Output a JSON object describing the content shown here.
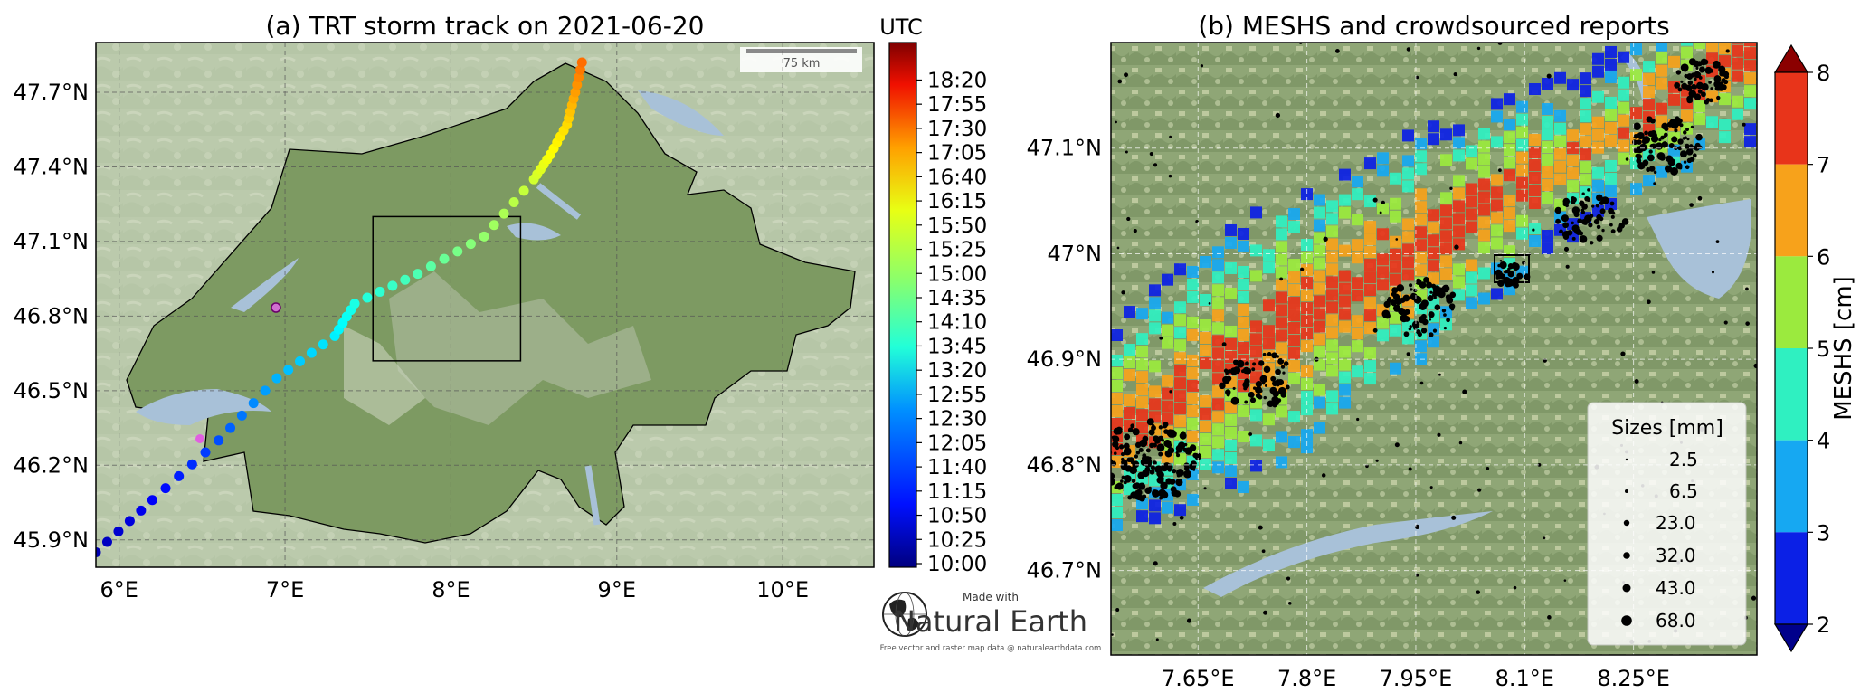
{
  "panel_a": {
    "title": "(a) TRT storm track on 2021-06-20",
    "lat_ticks": [
      "47.7°N",
      "47.4°N",
      "47.1°N",
      "46.8°N",
      "46.5°N",
      "46.2°N",
      "45.9°N"
    ],
    "lat_values": [
      47.7,
      47.4,
      47.1,
      46.8,
      46.5,
      46.2,
      45.9
    ],
    "lon_ticks": [
      "6°E",
      "7°E",
      "8°E",
      "9°E",
      "10°E"
    ],
    "lon_values": [
      6,
      7,
      8,
      9,
      10
    ],
    "extent": {
      "lon": [
        5.86,
        10.55
      ],
      "lat": [
        45.79,
        47.9
      ]
    },
    "scalebar_label": "75 km",
    "study_box": {
      "lon": [
        7.53,
        8.42
      ],
      "lat": [
        46.62,
        47.2
      ]
    },
    "colorbar_title": "UTC",
    "colorbar_range": [
      "10:00",
      "18:45"
    ],
    "colorbar_ticks": [
      "18:20",
      "17:55",
      "17:30",
      "17:05",
      "16:40",
      "16:15",
      "15:50",
      "15:25",
      "15:00",
      "14:35",
      "14:10",
      "13:45",
      "13:20",
      "12:55",
      "12:30",
      "12:05",
      "11:40",
      "11:15",
      "10:50",
      "10:25",
      "10:00"
    ],
    "marker_colors": {
      "track_low": "#0a1fd8",
      "track_high": "#f4a21a"
    }
  },
  "natural_earth": {
    "made_with": "Made with",
    "name": "Natural Earth",
    "credit": "Free vector and raster map data @ naturalearthdata.com"
  },
  "panel_b": {
    "title": "(b) MESHS and crowdsourced reports",
    "lat_ticks": [
      "47.1°N",
      "47°N",
      "46.9°N",
      "46.8°N",
      "46.7°N"
    ],
    "lat_values": [
      47.1,
      47.0,
      46.9,
      46.8,
      46.7
    ],
    "lon_ticks": [
      "7.65°E",
      "7.8°E",
      "7.95°E",
      "8.1°E",
      "8.25°E"
    ],
    "lon_values": [
      7.65,
      7.8,
      7.95,
      8.1,
      8.25
    ],
    "extent": {
      "lon": [
        7.53,
        8.42
      ],
      "lat": [
        46.62,
        47.2
      ]
    },
    "colorbar_label": "MESHS [cm]",
    "colorbar_ticks": [
      "8",
      "7",
      "6",
      "5",
      "4",
      "3",
      "2"
    ],
    "colorbar_colors": [
      "#8b0000",
      "#e8341a",
      "#f7a21b",
      "#9bea3e",
      "#2ff0c1",
      "#16a8f2",
      "#0b20e6",
      "#00008b"
    ],
    "legend": {
      "title": "Sizes [mm]",
      "entries": [
        {
          "label": "2.5",
          "size_mm": 2.5
        },
        {
          "label": "6.5",
          "size_mm": 6.5
        },
        {
          "label": "23.0",
          "size_mm": 23.0
        },
        {
          "label": "32.0",
          "size_mm": 32.0
        },
        {
          "label": "43.0",
          "size_mm": 43.0
        },
        {
          "label": "68.0",
          "size_mm": 68.0
        }
      ]
    }
  }
}
